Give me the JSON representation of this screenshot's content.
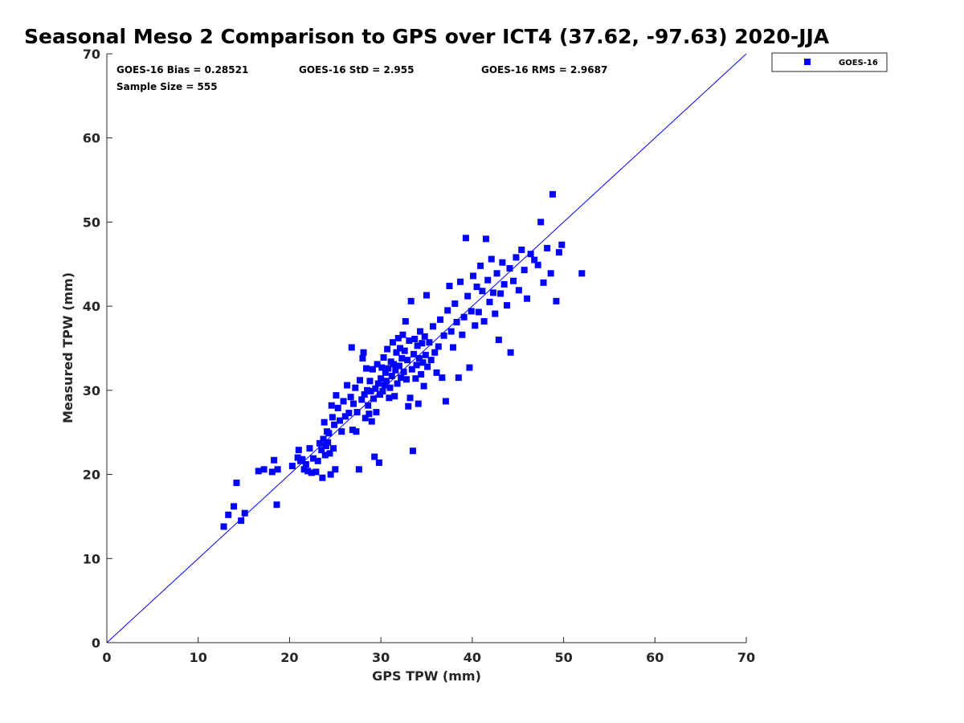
{
  "chart_data": {
    "type": "scatter",
    "title": "Seasonal Meso 2 Comparison to GPS over ICT4 (37.62, -97.63) 2020-JJA",
    "xlabel": "GPS TPW (mm)",
    "ylabel": "Measured TPW (mm)",
    "xlim": [
      0,
      70
    ],
    "ylim": [
      0,
      70
    ],
    "x_ticks": [
      0,
      10,
      20,
      30,
      40,
      50,
      60,
      70
    ],
    "y_ticks": [
      0,
      10,
      20,
      30,
      40,
      50,
      60,
      70
    ],
    "legend": {
      "placement": "outside top-right",
      "entries": [
        "GOES-16"
      ]
    },
    "reference_line": {
      "type": "one-to-one",
      "from": [
        0,
        0
      ],
      "to": [
        70,
        70
      ],
      "color": "#0000ff"
    },
    "stats": {
      "bias": "GOES-16 Bias = 0.28521",
      "std": "GOES-16 StD = 2.955",
      "rms": "GOES-16 RMS = 2.9687",
      "sample_size": "Sample Size = 555"
    },
    "series": [
      {
        "name": "GOES-16",
        "color": "#0000ff",
        "marker": "square",
        "points": [
          [
            12.8,
            13.8
          ],
          [
            13.3,
            15.2
          ],
          [
            13.9,
            16.2
          ],
          [
            14.2,
            19.0
          ],
          [
            14.7,
            14.5
          ],
          [
            15.1,
            15.4
          ],
          [
            16.6,
            20.4
          ],
          [
            17.2,
            20.6
          ],
          [
            18.1,
            20.3
          ],
          [
            18.3,
            21.7
          ],
          [
            18.6,
            16.4
          ],
          [
            18.7,
            20.6
          ],
          [
            20.3,
            21.0
          ],
          [
            20.9,
            22.0
          ],
          [
            21.0,
            22.9
          ],
          [
            21.2,
            21.6
          ],
          [
            21.4,
            21.8
          ],
          [
            21.6,
            20.6
          ],
          [
            21.8,
            21.2
          ],
          [
            22.0,
            20.4
          ],
          [
            22.2,
            23.1
          ],
          [
            22.4,
            20.2
          ],
          [
            22.6,
            21.9
          ],
          [
            22.9,
            20.3
          ],
          [
            23.1,
            21.6
          ],
          [
            23.3,
            23.7
          ],
          [
            23.5,
            22.9
          ],
          [
            23.6,
            19.6
          ],
          [
            23.7,
            24.2
          ],
          [
            23.8,
            26.2
          ],
          [
            23.9,
            22.3
          ],
          [
            24.0,
            23.4
          ],
          [
            24.1,
            25.1
          ],
          [
            24.2,
            23.8
          ],
          [
            24.3,
            24.9
          ],
          [
            24.4,
            22.5
          ],
          [
            24.5,
            20.0
          ],
          [
            24.6,
            28.2
          ],
          [
            24.7,
            26.8
          ],
          [
            24.8,
            23.1
          ],
          [
            24.9,
            25.9
          ],
          [
            25.0,
            20.6
          ],
          [
            25.1,
            29.4
          ],
          [
            25.3,
            27.9
          ],
          [
            25.5,
            26.4
          ],
          [
            25.7,
            25.1
          ],
          [
            25.9,
            28.7
          ],
          [
            26.1,
            26.9
          ],
          [
            26.3,
            30.6
          ],
          [
            26.5,
            27.3
          ],
          [
            26.7,
            29.2
          ],
          [
            26.8,
            35.1
          ],
          [
            26.9,
            25.3
          ],
          [
            27.0,
            28.4
          ],
          [
            27.2,
            30.3
          ],
          [
            27.3,
            25.1
          ],
          [
            27.4,
            27.4
          ],
          [
            27.6,
            20.6
          ],
          [
            27.7,
            31.2
          ],
          [
            27.9,
            28.9
          ],
          [
            28.0,
            33.8
          ],
          [
            28.1,
            34.5
          ],
          [
            28.2,
            29.5
          ],
          [
            28.3,
            26.7
          ],
          [
            28.4,
            32.6
          ],
          [
            28.5,
            30.0
          ],
          [
            28.6,
            28.2
          ],
          [
            28.7,
            27.2
          ],
          [
            28.8,
            31.1
          ],
          [
            28.9,
            29.9
          ],
          [
            29.0,
            26.3
          ],
          [
            29.1,
            32.5
          ],
          [
            29.2,
            29.0
          ],
          [
            29.3,
            22.1
          ],
          [
            29.4,
            30.2
          ],
          [
            29.5,
            27.4
          ],
          [
            29.6,
            33.1
          ],
          [
            29.7,
            30.8
          ],
          [
            29.8,
            21.4
          ],
          [
            29.9,
            29.5
          ],
          [
            30.0,
            31.4
          ],
          [
            30.1,
            32.7
          ],
          [
            30.2,
            29.9
          ],
          [
            30.3,
            33.9
          ],
          [
            30.4,
            30.6
          ],
          [
            30.5,
            32.1
          ],
          [
            30.6,
            31.1
          ],
          [
            30.7,
            34.9
          ],
          [
            30.8,
            32.6
          ],
          [
            30.9,
            29.1
          ],
          [
            31.0,
            30.3
          ],
          [
            31.1,
            33.4
          ],
          [
            31.2,
            31.7
          ],
          [
            31.3,
            35.7
          ],
          [
            31.4,
            33.1
          ],
          [
            31.5,
            29.3
          ],
          [
            31.6,
            32.4
          ],
          [
            31.7,
            34.5
          ],
          [
            31.8,
            30.8
          ],
          [
            31.9,
            36.2
          ],
          [
            32.0,
            32.9
          ],
          [
            32.1,
            35.0
          ],
          [
            32.2,
            31.5
          ],
          [
            32.3,
            33.8
          ],
          [
            32.4,
            36.6
          ],
          [
            32.5,
            32.2
          ],
          [
            32.6,
            34.7
          ],
          [
            32.7,
            38.2
          ],
          [
            32.8,
            31.3
          ],
          [
            32.9,
            33.6
          ],
          [
            33.0,
            28.1
          ],
          [
            33.1,
            35.9
          ],
          [
            33.2,
            29.1
          ],
          [
            33.3,
            40.6
          ],
          [
            33.4,
            32.5
          ],
          [
            33.5,
            22.8
          ],
          [
            33.6,
            34.3
          ],
          [
            33.7,
            36.1
          ],
          [
            33.8,
            31.4
          ],
          [
            33.9,
            33.0
          ],
          [
            34.0,
            35.3
          ],
          [
            34.1,
            28.4
          ],
          [
            34.2,
            33.8
          ],
          [
            34.3,
            37.0
          ],
          [
            34.4,
            31.9
          ],
          [
            34.5,
            35.6
          ],
          [
            34.6,
            33.3
          ],
          [
            34.7,
            30.5
          ],
          [
            34.8,
            36.4
          ],
          [
            34.9,
            34.2
          ],
          [
            35.0,
            41.3
          ],
          [
            35.1,
            32.8
          ],
          [
            35.3,
            35.7
          ],
          [
            35.5,
            33.6
          ],
          [
            35.7,
            37.6
          ],
          [
            35.9,
            34.5
          ],
          [
            36.1,
            32.1
          ],
          [
            36.3,
            35.2
          ],
          [
            36.5,
            38.4
          ],
          [
            36.7,
            31.5
          ],
          [
            36.9,
            36.5
          ],
          [
            37.1,
            28.7
          ],
          [
            37.3,
            39.5
          ],
          [
            37.5,
            42.4
          ],
          [
            37.7,
            37.0
          ],
          [
            37.9,
            35.1
          ],
          [
            38.1,
            40.3
          ],
          [
            38.3,
            38.1
          ],
          [
            38.5,
            31.5
          ],
          [
            38.7,
            42.9
          ],
          [
            38.9,
            36.6
          ],
          [
            39.1,
            38.7
          ],
          [
            39.3,
            48.1
          ],
          [
            39.5,
            41.2
          ],
          [
            39.7,
            32.7
          ],
          [
            39.9,
            39.4
          ],
          [
            40.1,
            43.6
          ],
          [
            40.3,
            37.7
          ],
          [
            40.5,
            42.3
          ],
          [
            40.7,
            39.3
          ],
          [
            40.9,
            44.8
          ],
          [
            41.1,
            41.8
          ],
          [
            41.3,
            38.2
          ],
          [
            41.5,
            48.0
          ],
          [
            41.7,
            43.1
          ],
          [
            41.9,
            40.5
          ],
          [
            42.1,
            45.6
          ],
          [
            42.3,
            41.6
          ],
          [
            42.5,
            39.1
          ],
          [
            42.7,
            43.9
          ],
          [
            42.9,
            36.0
          ],
          [
            43.1,
            41.5
          ],
          [
            43.3,
            45.2
          ],
          [
            43.5,
            42.6
          ],
          [
            43.8,
            40.1
          ],
          [
            44.1,
            44.5
          ],
          [
            44.2,
            34.5
          ],
          [
            44.5,
            43.0
          ],
          [
            44.8,
            45.8
          ],
          [
            45.1,
            41.9
          ],
          [
            45.4,
            46.7
          ],
          [
            45.7,
            44.3
          ],
          [
            46.0,
            40.9
          ],
          [
            46.4,
            46.2
          ],
          [
            46.8,
            45.5
          ],
          [
            47.2,
            44.9
          ],
          [
            47.5,
            50.0
          ],
          [
            47.8,
            42.8
          ],
          [
            48.2,
            46.9
          ],
          [
            48.6,
            43.9
          ],
          [
            48.8,
            53.3
          ],
          [
            49.2,
            40.6
          ],
          [
            49.5,
            46.4
          ],
          [
            49.8,
            47.3
          ],
          [
            52.0,
            43.9
          ]
        ]
      }
    ]
  }
}
